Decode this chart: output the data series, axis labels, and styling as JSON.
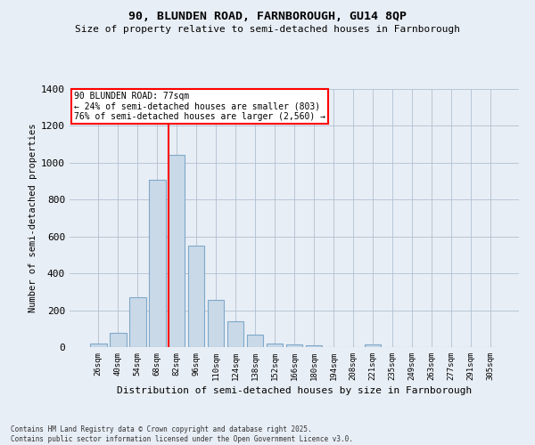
{
  "title1": "90, BLUNDEN ROAD, FARNBOROUGH, GU14 8QP",
  "title2": "Size of property relative to semi-detached houses in Farnborough",
  "xlabel": "Distribution of semi-detached houses by size in Farnborough",
  "ylabel": "Number of semi-detached properties",
  "categories": [
    "26sqm",
    "40sqm",
    "54sqm",
    "68sqm",
    "82sqm",
    "96sqm",
    "110sqm",
    "124sqm",
    "138sqm",
    "152sqm",
    "166sqm",
    "180sqm",
    "194sqm",
    "208sqm",
    "221sqm",
    "235sqm",
    "249sqm",
    "263sqm",
    "277sqm",
    "291sqm",
    "305sqm"
  ],
  "values": [
    20,
    75,
    270,
    910,
    1045,
    550,
    255,
    140,
    70,
    20,
    15,
    10,
    0,
    0,
    15,
    0,
    0,
    0,
    0,
    0,
    0
  ],
  "bar_color": "#c9d9e8",
  "bar_edge_color": "#7fa8c9",
  "vline_color": "red",
  "annotation_title": "90 BLUNDEN ROAD: 77sqm",
  "annotation_line2": "← 24% of semi-detached houses are smaller (803)",
  "annotation_line3": "76% of semi-detached houses are larger (2,560) →",
  "footer1": "Contains HM Land Registry data © Crown copyright and database right 2025.",
  "footer2": "Contains public sector information licensed under the Open Government Licence v3.0.",
  "background_color": "#e8eef5",
  "plot_bg_color": "#e8eef5",
  "ylim": [
    0,
    1400
  ],
  "yticks": [
    0,
    200,
    400,
    600,
    800,
    1000,
    1200,
    1400
  ]
}
